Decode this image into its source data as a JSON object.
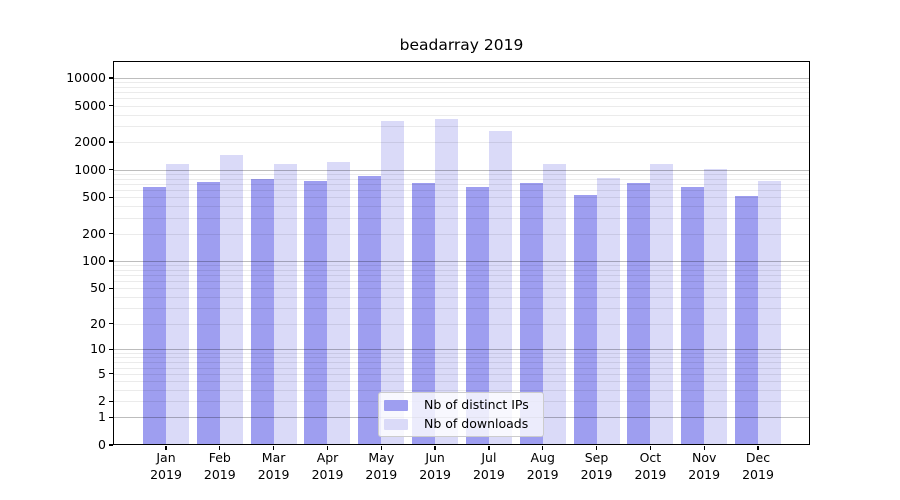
{
  "colors": {
    "distinct_ips": "#9e9ef0",
    "downloads": "#dadaf8",
    "major_grid": "rgba(0,0,0,0.26)",
    "minor_grid": "rgba(0,0,0,0.08)",
    "axis": "#000000",
    "legend_border": "#cccccc"
  },
  "legend": {
    "items": [
      {
        "label": "Nb of distinct IPs",
        "color_key": "distinct_ips"
      },
      {
        "label": "Nb of downloads",
        "color_key": "downloads"
      }
    ],
    "position": "lower center"
  },
  "chart_data": {
    "type": "bar",
    "title": "beadarray 2019",
    "categories": [
      "Jan 2019",
      "Feb 2019",
      "Mar 2019",
      "Apr 2019",
      "May 2019",
      "Jun 2019",
      "Jul 2019",
      "Aug 2019",
      "Sep 2019",
      "Oct 2019",
      "Nov 2019",
      "Dec 2019"
    ],
    "series": [
      {
        "name": "Nb of distinct IPs",
        "color": "#9e9ef0",
        "values": [
          640,
          740,
          785,
          750,
          855,
          720,
          650,
          720,
          530,
          710,
          650,
          520
        ]
      },
      {
        "name": "Nb of downloads",
        "color": "#dadaf8",
        "values": [
          1150,
          1450,
          1150,
          1220,
          3430,
          3600,
          2640,
          1145,
          810,
          1150,
          1020,
          750
        ]
      }
    ],
    "xlabel": "",
    "ylabel": "",
    "y_scale": "log10(1+x)",
    "y_ticks": [
      0,
      1,
      2,
      5,
      10,
      20,
      50,
      100,
      200,
      500,
      1000,
      2000,
      5000,
      10000
    ],
    "ylim": [
      0,
      15300
    ],
    "grid": "horizontal, major decades darker + log minors lighter",
    "legend_position": "lower center"
  }
}
